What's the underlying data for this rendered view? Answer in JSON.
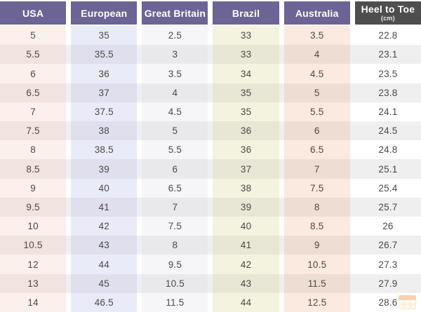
{
  "chart_data": {
    "type": "table",
    "columns": [
      {
        "label": "USA",
        "header_bg": "#6b6494",
        "row_odd_bg": "#fcf0eb",
        "row_even_bg": "#f1e3df"
      },
      {
        "label": "European",
        "header_bg": "#6b6494",
        "row_odd_bg": "#eaebf8",
        "row_even_bg": "#dfdfee"
      },
      {
        "label": "Great Britain",
        "header_bg": "#6b6494",
        "row_odd_bg": "#f6f6f8",
        "row_even_bg": "#e9e9eb"
      },
      {
        "label": "Brazil",
        "header_bg": "#6b6494",
        "row_odd_bg": "#f4f3e0",
        "row_even_bg": "#e8e7d5"
      },
      {
        "label": "Australia",
        "header_bg": "#6b6494",
        "row_odd_bg": "#faeae0",
        "row_even_bg": "#eeddd2"
      },
      {
        "label": "Heel to Toe",
        "sublabel": "(cm)",
        "header_bg": "#4e4e4e",
        "row_odd_bg": "#ffffff",
        "row_even_bg": "#efefef"
      }
    ],
    "rows": [
      [
        "5",
        "35",
        "2.5",
        "33",
        "3.5",
        "22.8"
      ],
      [
        "5.5",
        "35.5",
        "3",
        "33",
        "4",
        "23.1"
      ],
      [
        "6",
        "36",
        "3.5",
        "34",
        "4.5",
        "23.5"
      ],
      [
        "6.5",
        "37",
        "4",
        "35",
        "5",
        "23.8"
      ],
      [
        "7",
        "37.5",
        "4.5",
        "35",
        "5.5",
        "24.1"
      ],
      [
        "7.5",
        "38",
        "5",
        "36",
        "6",
        "24.5"
      ],
      [
        "8",
        "38.5",
        "5.5",
        "36",
        "6.5",
        "24.8"
      ],
      [
        "8.5",
        "39",
        "6",
        "37",
        "7",
        "25.1"
      ],
      [
        "9",
        "40",
        "6.5",
        "38",
        "7.5",
        "25.4"
      ],
      [
        "9.5",
        "41",
        "7",
        "39",
        "8",
        "25.7"
      ],
      [
        "10",
        "42",
        "7.5",
        "40",
        "8.5",
        "26"
      ],
      [
        "10.5",
        "43",
        "8",
        "41",
        "9",
        "26.7"
      ],
      [
        "12",
        "44",
        "9.5",
        "42",
        "10.5",
        "27.3"
      ],
      [
        "13",
        "45",
        "10.5",
        "43",
        "11.5",
        "27.9"
      ],
      [
        "14",
        "46.5",
        "11.5",
        "44",
        "12.5",
        "28.6"
      ]
    ],
    "row_stripe_odd": "#ffffff",
    "row_stripe_even": "#efefef",
    "text_color": "#4c4846",
    "header_text_color": "#ffffff",
    "legend_position": "none",
    "grid": "off"
  },
  "watermark": {
    "icon": "table-grid-icon",
    "accent_color": "#f0a04a"
  }
}
